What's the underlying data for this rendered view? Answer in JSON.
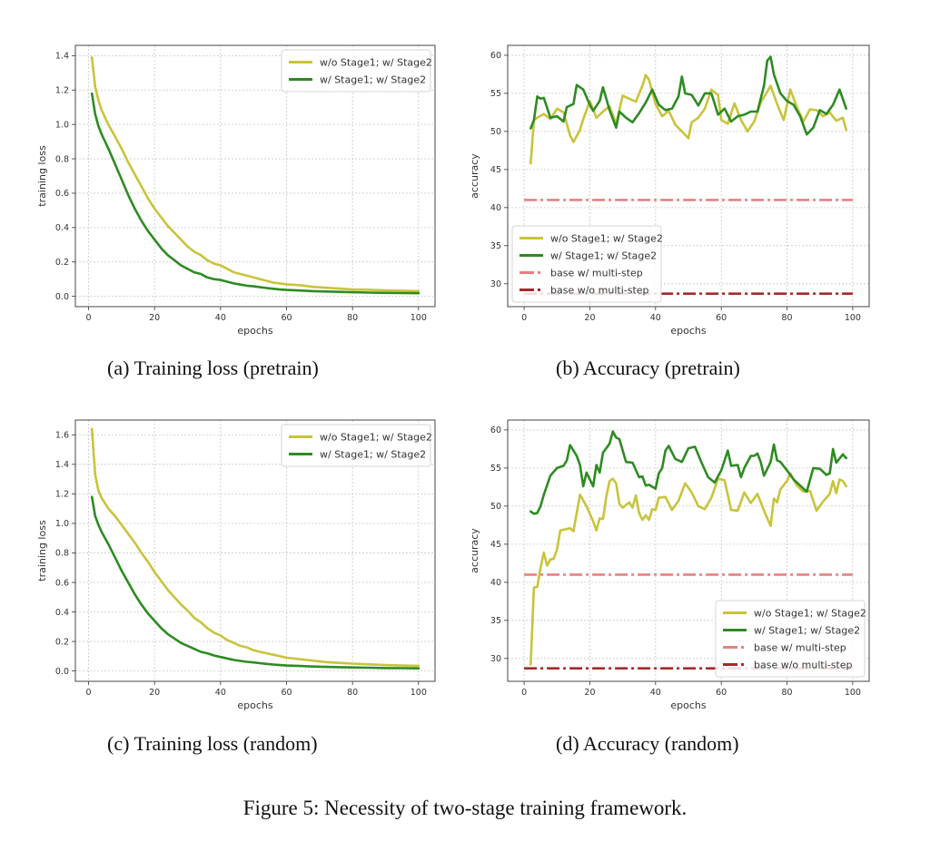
{
  "figure_caption": "Figure 5: Necessity of two-stage training framework.",
  "colors": {
    "wo_stage1": "#c8c43c",
    "w_stage1": "#2e8b22",
    "base_multi": "#e88080",
    "base_wo_multi": "#a52a2a"
  },
  "chart_data": [
    {
      "id": "a",
      "type": "line",
      "caption": "(a) Training loss (pretrain)",
      "title": "",
      "xlabel": "epochs",
      "ylabel": "training loss",
      "xlim": [
        -4,
        105
      ],
      "ylim": [
        -0.06,
        1.46
      ],
      "xticks": [
        0,
        20,
        40,
        60,
        80,
        100
      ],
      "yticks": [
        0.0,
        0.2,
        0.4,
        0.6,
        0.8,
        1.0,
        1.2,
        1.4
      ],
      "ytick_labels": [
        "0.0",
        "0.2",
        "0.4",
        "0.6",
        "0.8",
        "1.0",
        "1.2",
        "1.4"
      ],
      "grid": true,
      "legend_position": "top-right",
      "series": [
        {
          "name": "w/o Stage1; w/ Stage2",
          "color_key": "wo_stage1",
          "style": "solid",
          "x": [
            1,
            2,
            3,
            4,
            6,
            8,
            10,
            12,
            14,
            16,
            18,
            20,
            22,
            24,
            26,
            28,
            30,
            32,
            34,
            36,
            38,
            40,
            42,
            44,
            46,
            48,
            50,
            52,
            54,
            56,
            58,
            60,
            64,
            68,
            72,
            76,
            80,
            85,
            90,
            95,
            100
          ],
          "values": [
            1.39,
            1.22,
            1.14,
            1.08,
            1.0,
            0.93,
            0.86,
            0.78,
            0.71,
            0.64,
            0.57,
            0.51,
            0.46,
            0.41,
            0.37,
            0.33,
            0.29,
            0.26,
            0.24,
            0.21,
            0.19,
            0.18,
            0.16,
            0.14,
            0.13,
            0.12,
            0.11,
            0.1,
            0.09,
            0.08,
            0.075,
            0.07,
            0.065,
            0.055,
            0.05,
            0.045,
            0.04,
            0.038,
            0.035,
            0.033,
            0.03
          ]
        },
        {
          "name": "w/ Stage1; w/ Stage2",
          "color_key": "w_stage1",
          "style": "solid",
          "x": [
            1,
            2,
            3,
            4,
            6,
            8,
            10,
            12,
            14,
            16,
            18,
            20,
            22,
            24,
            26,
            28,
            30,
            32,
            34,
            36,
            38,
            40,
            42,
            44,
            46,
            48,
            50,
            52,
            54,
            56,
            58,
            60,
            64,
            68,
            72,
            76,
            80,
            85,
            90,
            95,
            100
          ],
          "values": [
            1.18,
            1.06,
            0.99,
            0.94,
            0.86,
            0.77,
            0.68,
            0.59,
            0.51,
            0.44,
            0.38,
            0.33,
            0.28,
            0.24,
            0.21,
            0.18,
            0.16,
            0.14,
            0.13,
            0.11,
            0.1,
            0.095,
            0.085,
            0.075,
            0.068,
            0.062,
            0.058,
            0.053,
            0.048,
            0.044,
            0.04,
            0.037,
            0.034,
            0.03,
            0.028,
            0.026,
            0.024,
            0.022,
            0.02,
            0.019,
            0.018
          ]
        }
      ]
    },
    {
      "id": "b",
      "type": "line",
      "caption": "(b) Accuracy (pretrain)",
      "title": "",
      "xlabel": "epochs",
      "ylabel": "accuracy",
      "xlim": [
        -5,
        105
      ],
      "ylim": [
        27,
        61.3
      ],
      "xticks": [
        0,
        20,
        40,
        60,
        80,
        100
      ],
      "yticks": [
        30,
        35,
        40,
        45,
        50,
        55,
        60
      ],
      "ytick_labels": [
        "30",
        "35",
        "40",
        "45",
        "50",
        "55",
        "60"
      ],
      "grid": true,
      "legend_position": "bottom-left",
      "series": [
        {
          "name": "w/o Stage1; w/ Stage2",
          "color_key": "wo_stage1",
          "style": "solid",
          "x": [
            2,
            3,
            4,
            6,
            8,
            10,
            12,
            14,
            15,
            17,
            18,
            20,
            22,
            24,
            26,
            28,
            30,
            32,
            34,
            36,
            37,
            38,
            40,
            42,
            44,
            46,
            48,
            50,
            51,
            53,
            55,
            57,
            59,
            60,
            62,
            64,
            66,
            68,
            70,
            72,
            74,
            75,
            77,
            79,
            81,
            83,
            85,
            87,
            89,
            91,
            93,
            95,
            97,
            98
          ],
          "values": [
            45.8,
            51.5,
            51.8,
            52.3,
            51.6,
            53.0,
            52.5,
            49.5,
            48.6,
            50.2,
            51.6,
            54.0,
            51.8,
            52.6,
            53.3,
            51.0,
            54.7,
            54.3,
            53.9,
            56.0,
            57.4,
            56.8,
            53.6,
            52.0,
            52.7,
            50.9,
            50.0,
            49.1,
            51.2,
            51.8,
            53.0,
            55.5,
            54.8,
            51.5,
            51.0,
            53.7,
            51.5,
            50.0,
            51.3,
            53.8,
            55.2,
            56.0,
            53.6,
            51.5,
            55.5,
            53.2,
            51.3,
            52.9,
            52.8,
            52.0,
            52.5,
            51.4,
            51.8,
            50.2
          ]
        },
        {
          "name": "w/ Stage1; w/ Stage2",
          "color_key": "w_stage1",
          "style": "solid",
          "x": [
            2,
            3,
            4,
            5,
            6,
            8,
            10,
            12,
            13,
            15,
            16,
            18,
            20,
            21,
            23,
            24,
            26,
            28,
            29,
            31,
            33,
            35,
            37,
            39,
            41,
            43,
            45,
            47,
            48,
            49,
            51,
            53,
            55,
            57,
            59,
            61,
            63,
            65,
            67,
            69,
            71,
            73,
            74,
            75,
            76,
            78,
            80,
            82,
            84,
            86,
            88,
            90,
            92,
            94,
            96,
            98
          ],
          "values": [
            50.4,
            51.5,
            54.6,
            54.3,
            54.4,
            51.8,
            52.0,
            51.3,
            53.2,
            53.6,
            56.1,
            55.5,
            53.5,
            52.7,
            54.0,
            55.8,
            52.8,
            50.5,
            52.6,
            51.8,
            51.2,
            52.4,
            53.8,
            55.5,
            53.5,
            52.8,
            53.0,
            54.6,
            57.2,
            55.0,
            54.8,
            53.4,
            55.0,
            55.0,
            52.2,
            53.0,
            51.3,
            52.0,
            52.2,
            52.6,
            52.6,
            56.0,
            59.3,
            59.8,
            57.5,
            55.0,
            54.0,
            53.5,
            52.0,
            49.6,
            50.5,
            52.8,
            52.3,
            53.5,
            55.5,
            53.0
          ]
        },
        {
          "name": "base w/ multi-step",
          "color_key": "base_multi",
          "style": "dashdot",
          "x": [
            0,
            100
          ],
          "values": [
            41.0,
            41.0
          ]
        },
        {
          "name": "base w/o multi-step",
          "color_key": "base_wo_multi",
          "style": "dashdot",
          "x": [
            0,
            100
          ],
          "values": [
            28.7,
            28.7
          ]
        }
      ]
    },
    {
      "id": "c",
      "type": "line",
      "caption": "(c) Training loss (random)",
      "title": "",
      "xlabel": "epochs",
      "ylabel": "training loss",
      "xlim": [
        -4,
        105
      ],
      "ylim": [
        -0.07,
        1.7
      ],
      "xticks": [
        0,
        20,
        40,
        60,
        80,
        100
      ],
      "yticks": [
        0.0,
        0.2,
        0.4,
        0.6,
        0.8,
        1.0,
        1.2,
        1.4,
        1.6
      ],
      "ytick_labels": [
        "0.0",
        "0.2",
        "0.4",
        "0.6",
        "0.8",
        "1.0",
        "1.2",
        "1.4",
        "1.6"
      ],
      "grid": true,
      "legend_position": "top-right",
      "series": [
        {
          "name": "w/o Stage1; w/ Stage2",
          "color_key": "wo_stage1",
          "style": "solid",
          "x": [
            1,
            2,
            3,
            4,
            6,
            8,
            10,
            12,
            14,
            16,
            18,
            20,
            22,
            24,
            26,
            28,
            30,
            32,
            34,
            36,
            38,
            40,
            42,
            44,
            46,
            48,
            50,
            52,
            54,
            56,
            58,
            60,
            64,
            68,
            72,
            76,
            80,
            85,
            90,
            95,
            100
          ],
          "values": [
            1.64,
            1.33,
            1.22,
            1.17,
            1.1,
            1.05,
            0.99,
            0.93,
            0.87,
            0.8,
            0.74,
            0.67,
            0.61,
            0.55,
            0.5,
            0.45,
            0.41,
            0.36,
            0.33,
            0.29,
            0.26,
            0.24,
            0.21,
            0.19,
            0.17,
            0.16,
            0.14,
            0.13,
            0.12,
            0.11,
            0.1,
            0.09,
            0.08,
            0.07,
            0.06,
            0.055,
            0.05,
            0.045,
            0.04,
            0.037,
            0.035
          ]
        },
        {
          "name": "w/ Stage1; w/ Stage2",
          "color_key": "w_stage1",
          "style": "solid",
          "x": [
            1,
            2,
            3,
            4,
            6,
            8,
            10,
            12,
            14,
            16,
            18,
            20,
            22,
            24,
            26,
            28,
            30,
            32,
            34,
            36,
            38,
            40,
            42,
            44,
            46,
            48,
            50,
            52,
            54,
            56,
            58,
            60,
            64,
            68,
            72,
            76,
            80,
            85,
            90,
            95,
            100
          ],
          "values": [
            1.18,
            1.05,
            0.99,
            0.94,
            0.86,
            0.77,
            0.68,
            0.6,
            0.52,
            0.45,
            0.39,
            0.34,
            0.29,
            0.25,
            0.22,
            0.19,
            0.17,
            0.15,
            0.13,
            0.12,
            0.105,
            0.095,
            0.085,
            0.075,
            0.068,
            0.062,
            0.058,
            0.053,
            0.048,
            0.044,
            0.04,
            0.037,
            0.034,
            0.03,
            0.028,
            0.026,
            0.024,
            0.022,
            0.02,
            0.019,
            0.018
          ]
        }
      ]
    },
    {
      "id": "d",
      "type": "line",
      "caption": "(d) Accuracy (random)",
      "title": "",
      "xlabel": "epochs",
      "ylabel": "accuracy",
      "xlim": [
        -5,
        105
      ],
      "ylim": [
        27,
        61.3
      ],
      "xticks": [
        0,
        20,
        40,
        60,
        80,
        100
      ],
      "yticks": [
        30,
        35,
        40,
        45,
        50,
        55,
        60
      ],
      "ytick_labels": [
        "30",
        "35",
        "40",
        "45",
        "50",
        "55",
        "60"
      ],
      "grid": true,
      "legend_position": "bottom-right",
      "series": [
        {
          "name": "w/o Stage1; w/ Stage2",
          "color_key": "wo_stage1",
          "style": "solid",
          "x": [
            2,
            3,
            4,
            5,
            6,
            7,
            8,
            9,
            10,
            11,
            12,
            14,
            15,
            17,
            19,
            21,
            22,
            23,
            24,
            25,
            26,
            27,
            28,
            29,
            30,
            32,
            33,
            34,
            35,
            36,
            37,
            38,
            39,
            40,
            41,
            43,
            45,
            47,
            49,
            51,
            53,
            55,
            57,
            59,
            61,
            63,
            65,
            67,
            69,
            71,
            73,
            75,
            76,
            77,
            78,
            80,
            81,
            83,
            85,
            87,
            89,
            91,
            93,
            94,
            95,
            96,
            97,
            98
          ],
          "values": [
            29.2,
            39.3,
            39.4,
            41.9,
            43.9,
            42.2,
            43.0,
            43.1,
            44.3,
            46.8,
            46.9,
            47.1,
            46.7,
            51.5,
            50.0,
            48.0,
            46.8,
            48.4,
            48.3,
            51.2,
            53.3,
            53.6,
            53.0,
            50.3,
            49.8,
            50.5,
            49.8,
            51.4,
            49.1,
            48.2,
            48.8,
            48.2,
            49.6,
            49.5,
            51.1,
            51.2,
            49.5,
            50.7,
            53.0,
            51.8,
            50.0,
            49.6,
            51.1,
            53.6,
            53.4,
            49.5,
            49.4,
            51.8,
            50.4,
            51.6,
            49.4,
            47.4,
            51.0,
            50.5,
            52.2,
            53.3,
            54.3,
            52.7,
            51.9,
            52.0,
            49.4,
            50.6,
            51.6,
            53.3,
            51.7,
            53.5,
            53.3,
            52.6
          ]
        },
        {
          "name": "w/ Stage1; w/ Stage2",
          "color_key": "w_stage1",
          "style": "solid",
          "x": [
            2,
            3,
            4,
            5,
            6,
            8,
            10,
            12,
            13,
            14,
            16,
            17,
            18,
            19,
            21,
            22,
            23,
            24,
            26,
            27,
            28,
            29,
            31,
            33,
            35,
            36,
            37,
            38,
            40,
            41,
            42,
            43,
            44,
            46,
            48,
            50,
            52,
            54,
            56,
            58,
            60,
            62,
            63,
            65,
            66,
            67,
            69,
            70,
            71,
            72,
            73,
            75,
            76,
            77,
            78,
            80,
            82,
            84,
            86,
            88,
            90,
            92,
            93,
            94,
            95,
            97,
            98
          ],
          "values": [
            49.3,
            49.0,
            49.1,
            50.0,
            51.5,
            54.0,
            55.0,
            55.3,
            56.0,
            58.0,
            56.6,
            55.4,
            52.6,
            54.4,
            52.6,
            55.4,
            54.4,
            57.0,
            58.2,
            59.8,
            59.0,
            58.8,
            55.8,
            55.7,
            53.8,
            53.9,
            52.7,
            52.8,
            52.3,
            54.3,
            55.0,
            57.3,
            57.9,
            56.2,
            55.8,
            57.6,
            57.8,
            55.7,
            53.8,
            53.1,
            54.7,
            57.3,
            55.3,
            55.4,
            53.8,
            55.0,
            56.6,
            56.6,
            56.9,
            55.8,
            54.0,
            55.8,
            58.1,
            56.0,
            55.8,
            54.7,
            53.5,
            52.7,
            51.9,
            55.0,
            54.9,
            54.1,
            54.3,
            57.5,
            55.7,
            56.8,
            56.3
          ]
        },
        {
          "name": "base w/ multi-step",
          "color_key": "base_multi",
          "style": "dashdot",
          "x": [
            0,
            100
          ],
          "values": [
            41.0,
            41.0
          ]
        },
        {
          "name": "base w/o multi-step",
          "color_key": "base_wo_multi",
          "style": "dashdot",
          "x": [
            0,
            100
          ],
          "values": [
            28.7,
            28.7
          ]
        }
      ]
    }
  ]
}
